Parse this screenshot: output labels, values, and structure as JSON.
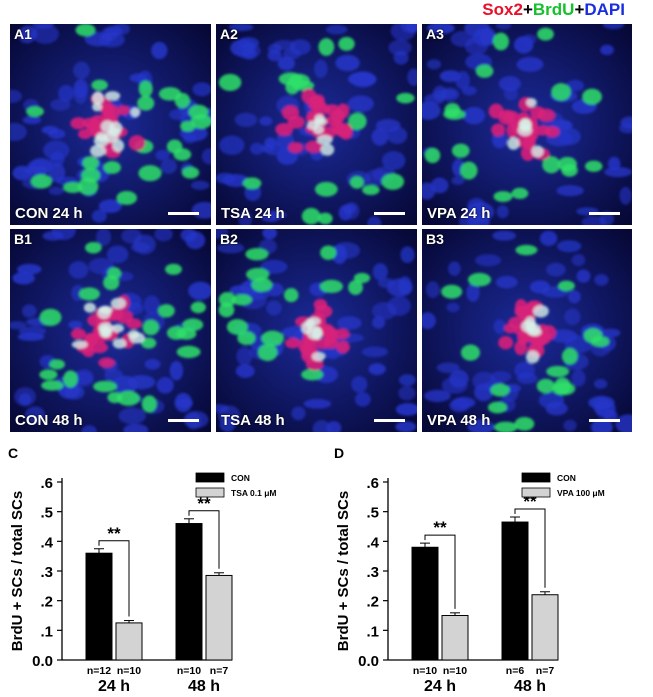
{
  "legend": {
    "sox2": "Sox2",
    "plus1": "+",
    "brdu": "BrdU",
    "plus2": "+",
    "dapi": "DAPI"
  },
  "micrographs": [
    {
      "tag": "A1",
      "condition": "CON 24 h"
    },
    {
      "tag": "A2",
      "condition": "TSA 24 h"
    },
    {
      "tag": "A3",
      "condition": "VPA 24 h"
    },
    {
      "tag": "B1",
      "condition": "CON 48 h"
    },
    {
      "tag": "B2",
      "condition": "TSA 48 h"
    },
    {
      "tag": "B3",
      "condition": "VPA 48 h"
    }
  ],
  "colors": {
    "dapi": "#2535c8",
    "brdu": "#2ee06a",
    "sox2": "#d8207a",
    "overlap": "#d8f0e8",
    "con_bar": "#000000",
    "drug_bar": "#d3d3d3"
  },
  "chart_data": [
    {
      "panel": "C",
      "type": "bar",
      "ylabel": "BrdU + SCs / total SCs",
      "yticks": [
        "0.0",
        ".1",
        ".2",
        ".3",
        ".4",
        ".5",
        ".6"
      ],
      "ylim": [
        0,
        0.6
      ],
      "categories": [
        "24 h",
        "48 h"
      ],
      "series": [
        {
          "name": "CON",
          "values": [
            0.36,
            0.46
          ],
          "errors": [
            0.015,
            0.016
          ],
          "n": [
            "n=12",
            "n=10"
          ],
          "color": "#000000"
        },
        {
          "name": "TSA 0.1 μM",
          "values": [
            0.125,
            0.285
          ],
          "errors": [
            0.008,
            0.009
          ],
          "n": [
            "n=10",
            "n=7"
          ],
          "color": "#d3d3d3"
        }
      ],
      "significance": [
        "**",
        "**"
      ],
      "legend_position": "top-right"
    },
    {
      "panel": "D",
      "type": "bar",
      "ylabel": "BrdU + SCs / total SCs",
      "yticks": [
        "0.0",
        ".1",
        ".2",
        ".3",
        ".4",
        ".5",
        ".6"
      ],
      "ylim": [
        0,
        0.6
      ],
      "categories": [
        "24 h",
        "48 h"
      ],
      "series": [
        {
          "name": "CON",
          "values": [
            0.38,
            0.465
          ],
          "errors": [
            0.014,
            0.017
          ],
          "n": [
            "n=10",
            "n=6"
          ],
          "color": "#000000"
        },
        {
          "name": "VPA 100 μM",
          "values": [
            0.15,
            0.22
          ],
          "errors": [
            0.009,
            0.01
          ],
          "n": [
            "n=10",
            "n=7"
          ],
          "color": "#d3d3d3"
        }
      ],
      "significance": [
        "**",
        "**"
      ],
      "legend_position": "top-right"
    }
  ]
}
